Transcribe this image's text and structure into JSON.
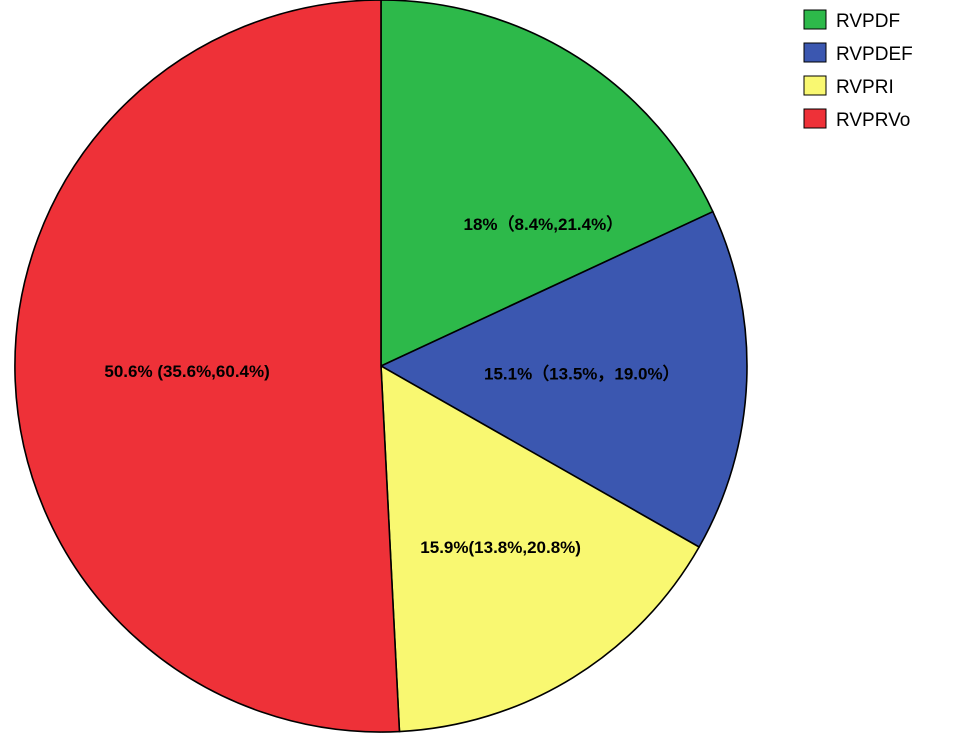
{
  "chart_data": {
    "type": "pie",
    "title": "",
    "categories": [
      "RVPDF",
      "RVPDEF",
      "RVPRI",
      "RVPRVo"
    ],
    "values": [
      18.0,
      15.1,
      15.9,
      50.6
    ],
    "labels": [
      "18%（8.4%,21.4%）",
      "15.1%（13.5%，19.0%）",
      "15.9%(13.8%,20.8%)",
      "50.6% (35.6%,60.4%)"
    ],
    "colors": [
      "#2db94a",
      "#3b57b0",
      "#f9f871",
      "#ee3138"
    ],
    "start_angle": "12 o'clock",
    "direction": "clockwise",
    "legend": {
      "position": "top-right",
      "items": [
        "RVPDF",
        "RVPDEF",
        "RVPRI",
        "RVPRVo"
      ]
    }
  }
}
